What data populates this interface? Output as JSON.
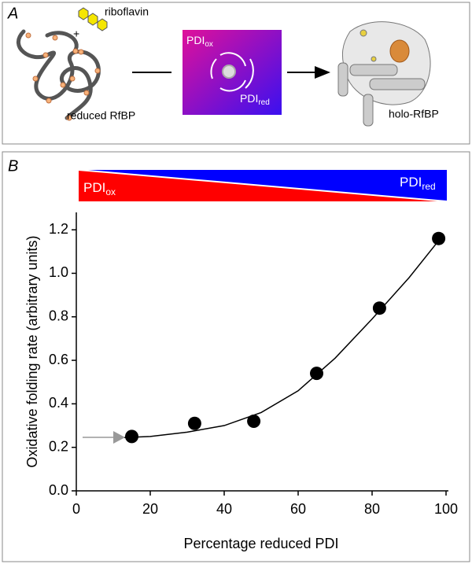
{
  "panel_a": {
    "label": "A",
    "plus": "+",
    "riboflavin": "riboflavin",
    "reduced": "reduced RfBP",
    "pdi_ox": {
      "base": "PDI",
      "sub": "ox"
    },
    "pdi_red": {
      "base": "PDI",
      "sub": "red"
    },
    "holo": "holo-RfBP"
  },
  "chart_data": {
    "type": "scatter",
    "panel_label": "B",
    "gradient": {
      "left": {
        "base": "PDI",
        "sub": "ox"
      },
      "right": {
        "base": "PDI",
        "sub": "red"
      },
      "left_color": "#ff0000",
      "right_color": "#0000ff"
    },
    "xlabel": "Percentage reduced PDI",
    "ylabel": "Oxidative folding rate (arbitrary  units)",
    "x": [
      15,
      32,
      48,
      65,
      82,
      98
    ],
    "values": [
      0.25,
      0.31,
      0.32,
      0.54,
      0.84,
      1.16
    ],
    "color": "#000000",
    "fit": {
      "x": [
        13,
        20,
        30,
        40,
        50,
        60,
        70,
        80,
        90,
        98
      ],
      "values": [
        0.245,
        0.25,
        0.27,
        0.3,
        0.36,
        0.46,
        0.61,
        0.79,
        0.98,
        1.15
      ],
      "color": "#000000"
    },
    "xlim": [
      0,
      100
    ],
    "ylim": [
      0,
      1.28
    ],
    "xticks": [
      0,
      20,
      40,
      60,
      80,
      100
    ],
    "yticks": [
      {
        "value": 0,
        "label": "0.0"
      },
      0.2,
      0.4,
      0.6,
      0.8,
      {
        "value": 1,
        "label": "1.0"
      },
      1.2
    ]
  }
}
